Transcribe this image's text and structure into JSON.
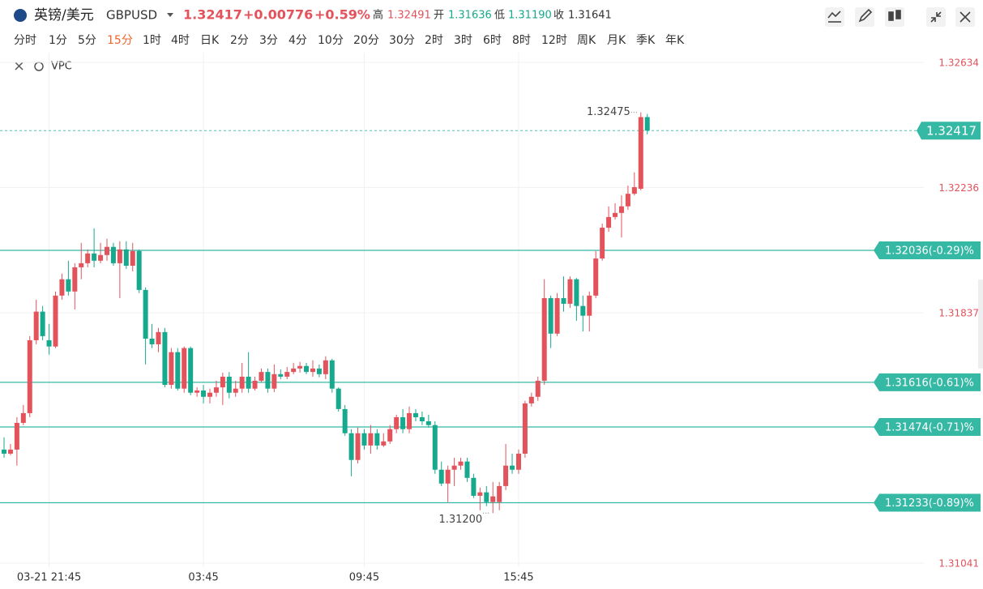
{
  "header": {
    "title": "英镑/美元",
    "symbol": "GBPUSD",
    "price": "1.32417",
    "change": "+0.00776",
    "change_pct": "+0.59%",
    "high_label": "高",
    "high": "1.32491",
    "open_label": "开",
    "open": "1.31636",
    "low_label": "低",
    "low": "1.31190",
    "close_label": "收",
    "close": "1.31641"
  },
  "timeframes": [
    "分时",
    "1分",
    "5分",
    "15分",
    "1时",
    "4时",
    "日K",
    "2分",
    "3分",
    "4分",
    "10分",
    "20分",
    "30分",
    "2时",
    "3时",
    "6时",
    "8时",
    "12时",
    "周K",
    "月K",
    "季K",
    "年K"
  ],
  "selected_timeframe": 3,
  "indicator": "VPC",
  "chart_data": {
    "type": "candlestick",
    "up_color": "#e2535c",
    "down_color": "#17a98d",
    "level_color": "#35b8a4",
    "open": [
      1.31402,
      1.31389,
      1.31402,
      1.31487,
      1.31518,
      1.3175,
      1.31841,
      1.3175,
      1.3173,
      1.31892,
      1.31944,
      1.31905,
      1.31982,
      1.31995,
      1.32026,
      1.32003,
      1.32021,
      1.32047,
      1.31995,
      1.32039,
      1.31987,
      1.32034,
      1.3191,
      1.31755,
      1.31737,
      1.31776,
      1.31608,
      1.31712,
      1.31596,
      1.31725,
      1.31583,
      1.3159,
      1.3157,
      1.31583,
      1.316,
      1.31634,
      1.31583,
      1.31596,
      1.31634,
      1.31596,
      1.31621,
      1.31649,
      1.31596,
      1.31642,
      1.31634,
      1.31649,
      1.3166,
      1.31668,
      1.31649,
      1.3166,
      1.31642,
      1.31686,
      1.31596,
      1.31531,
      1.31454,
      1.31369,
      1.31454,
      1.31415,
      1.31454,
      1.31415,
      1.31428,
      1.31467,
      1.31505,
      1.31467,
      1.31518,
      1.31505,
      1.31492,
      1.3148,
      1.31338,
      1.31294,
      1.31338,
      1.31351,
      1.31364,
      1.31312,
      1.31255,
      1.31266,
      1.31235,
      1.31235,
      1.31286,
      1.31351,
      1.31338,
      1.31389,
      1.31549,
      1.3157,
      1.31621,
      1.31884,
      1.31771,
      1.31884,
      1.31866,
      1.31944,
      1.31859,
      1.31828,
      1.31892,
      1.3201,
      1.32108,
      1.32142,
      1.32155,
      1.32176,
      1.32216,
      1.32232,
      1.3246
    ],
    "high": [
      1.31441,
      1.3142,
      1.31505,
      1.31544,
      1.31763,
      1.31879,
      1.31859,
      1.31802,
      1.31905,
      1.31962,
      1.32003,
      1.31995,
      1.3206,
      1.32039,
      1.32106,
      1.3206,
      1.32073,
      1.3206,
      1.32065,
      1.32065,
      1.3206,
      1.32039,
      1.31918,
      1.31802,
      1.31789,
      1.31789,
      1.31725,
      1.31725,
      1.3173,
      1.3173,
      1.316,
      1.31608,
      1.31596,
      1.31621,
      1.31647,
      1.31649,
      1.31621,
      1.31678,
      1.31712,
      1.31634,
      1.3166,
      1.3166,
      1.31673,
      1.31657,
      1.31665,
      1.31678,
      1.31681,
      1.31678,
      1.31686,
      1.31673,
      1.31699,
      1.31691,
      1.316,
      1.31544,
      1.31467,
      1.31472,
      1.31467,
      1.3148,
      1.31467,
      1.31454,
      1.3148,
      1.31513,
      1.31531,
      1.31539,
      1.31531,
      1.31523,
      1.31513,
      1.31492,
      1.31364,
      1.31351,
      1.31376,
      1.31376,
      1.31376,
      1.31325,
      1.31281,
      1.31286,
      1.31299,
      1.31299,
      1.3142,
      1.31389,
      1.31402,
      1.31557,
      1.31583,
      1.31634,
      1.31944,
      1.31892,
      1.319,
      1.31953,
      1.31953,
      1.31948,
      1.31892,
      1.31905,
      1.32034,
      1.32121,
      1.32176,
      1.32186,
      1.32211,
      1.32242,
      1.32284,
      1.32475,
      1.3247
    ],
    "low": [
      1.31376,
      1.31384,
      1.31351,
      1.3148,
      1.31505,
      1.31737,
      1.3175,
      1.31704,
      1.31725,
      1.31879,
      1.31892,
      1.31848,
      1.31944,
      1.31982,
      1.31982,
      1.31995,
      1.32003,
      1.31987,
      1.31884,
      1.31977,
      1.31969,
      1.319,
      1.31673,
      1.31725,
      1.31712,
      1.316,
      1.31596,
      1.3159,
      1.31583,
      1.31575,
      1.3157,
      1.31549,
      1.31549,
      1.3157,
      1.31544,
      1.31565,
      1.3157,
      1.31583,
      1.31583,
      1.3159,
      1.31616,
      1.31583,
      1.31585,
      1.31626,
      1.31626,
      1.31642,
      1.31647,
      1.31642,
      1.31634,
      1.31632,
      1.31626,
      1.31583,
      1.31523,
      1.31446,
      1.31317,
      1.31358,
      1.31402,
      1.31389,
      1.31402,
      1.3141,
      1.3142,
      1.31454,
      1.31454,
      1.31454,
      1.31492,
      1.3148,
      1.31472,
      1.31325,
      1.31286,
      1.31235,
      1.31286,
      1.31338,
      1.31299,
      1.31248,
      1.31209,
      1.31222,
      1.312,
      1.31209,
      1.31273,
      1.31325,
      1.31325,
      1.31376,
      1.31539,
      1.31557,
      1.31608,
      1.31725,
      1.31763,
      1.31841,
      1.31853,
      1.31812,
      1.31778,
      1.31778,
      1.31884,
      1.32003,
      1.32095,
      1.32134,
      1.32077,
      1.32165,
      1.32211,
      1.32227,
      1.32405
    ],
    "close": [
      1.31389,
      1.31402,
      1.31487,
      1.31518,
      1.3175,
      1.31841,
      1.31763,
      1.3173,
      1.31892,
      1.31944,
      1.31905,
      1.31982,
      1.31995,
      1.32026,
      1.32003,
      1.32021,
      1.32047,
      1.31995,
      1.32039,
      1.31987,
      1.32034,
      1.3191,
      1.31755,
      1.31737,
      1.31776,
      1.31608,
      1.31712,
      1.31596,
      1.31725,
      1.31583,
      1.3159,
      1.3157,
      1.31583,
      1.316,
      1.31634,
      1.31583,
      1.31596,
      1.31634,
      1.31596,
      1.31621,
      1.31649,
      1.31596,
      1.31642,
      1.31634,
      1.31649,
      1.3166,
      1.31668,
      1.31649,
      1.3166,
      1.31642,
      1.31686,
      1.31596,
      1.31531,
      1.31454,
      1.31369,
      1.31454,
      1.31415,
      1.31454,
      1.31415,
      1.31428,
      1.31467,
      1.31505,
      1.31467,
      1.31518,
      1.31505,
      1.31492,
      1.3148,
      1.31338,
      1.31294,
      1.31338,
      1.31351,
      1.31364,
      1.31312,
      1.31255,
      1.31266,
      1.31235,
      1.31253,
      1.31286,
      1.31351,
      1.31338,
      1.31389,
      1.31549,
      1.3157,
      1.31621,
      1.31884,
      1.31771,
      1.31884,
      1.31866,
      1.31944,
      1.31859,
      1.31828,
      1.31892,
      1.3201,
      1.32108,
      1.32142,
      1.32155,
      1.32176,
      1.32216,
      1.32237,
      1.3246,
      1.32417
    ],
    "xlim": [
      -0.63,
      143
    ],
    "xticks": [
      {
        "value": 7,
        "label": "03-21 21:45"
      },
      {
        "value": 31,
        "label": "03:45"
      },
      {
        "value": 56,
        "label": "09:45"
      },
      {
        "value": 80,
        "label": "15:45"
      }
    ],
    "ylim": [
      1.31028,
      1.32665
    ],
    "yticks": [
      1.32634,
      1.32236,
      1.31837,
      1.31041
    ],
    "grid": true,
    "last_price": 1.32417,
    "levels": [
      {
        "value": 1.32036,
        "label": "1.32036(-0.29)%"
      },
      {
        "value": 1.31616,
        "label": "1.31616(-0.61)%"
      },
      {
        "value": 1.31474,
        "label": "1.31474(-0.71)%"
      },
      {
        "value": 1.31233,
        "label": "1.31233(-0.89)%"
      }
    ],
    "high_marker": 1.32475,
    "low_marker": {
      "value": 1.312,
      "label": "1.31200"
    }
  }
}
